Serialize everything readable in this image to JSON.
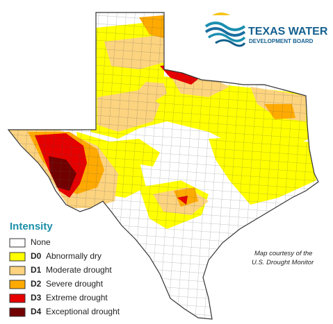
{
  "logo": {
    "line1": "TEXAS WATER",
    "line2": "DEVELOPMENT BOARD"
  },
  "legend": {
    "title": "Intensity",
    "items": [
      {
        "label": "None"
      },
      {
        "code": "D0",
        "label": "Abnormally dry"
      },
      {
        "code": "D1",
        "label": "Moderate drought"
      },
      {
        "code": "D2",
        "label": "Severe drought"
      },
      {
        "code": "D3",
        "label": "Extreme drought"
      },
      {
        "code": "D4",
        "label": "Exceptional drought"
      }
    ]
  },
  "credit": {
    "line1": "Map courtesy of the",
    "line2": "U.S. Drought Monitor"
  }
}
